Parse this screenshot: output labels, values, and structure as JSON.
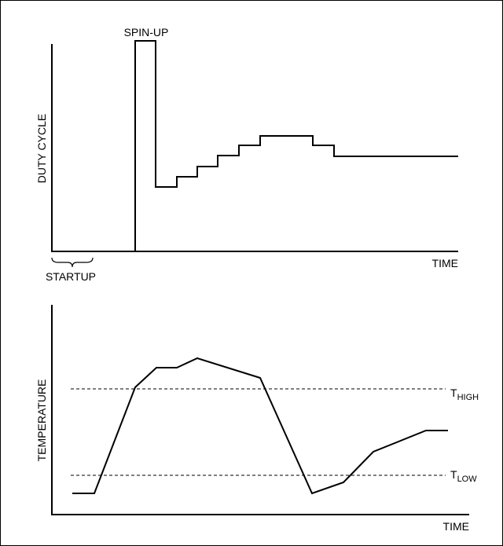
{
  "top_panel": {
    "y_label": "DUTY CYCLE",
    "x_label": "TIME",
    "spinup_label": "SPIN-UP",
    "startup_label": "STARTUP"
  },
  "bottom_panel": {
    "y_label": "TEMPERATURE",
    "x_label": "TIME",
    "thigh_main": "T",
    "thigh_sub": "HIGH",
    "tlow_main": "T",
    "tlow_sub": "LOW"
  }
}
